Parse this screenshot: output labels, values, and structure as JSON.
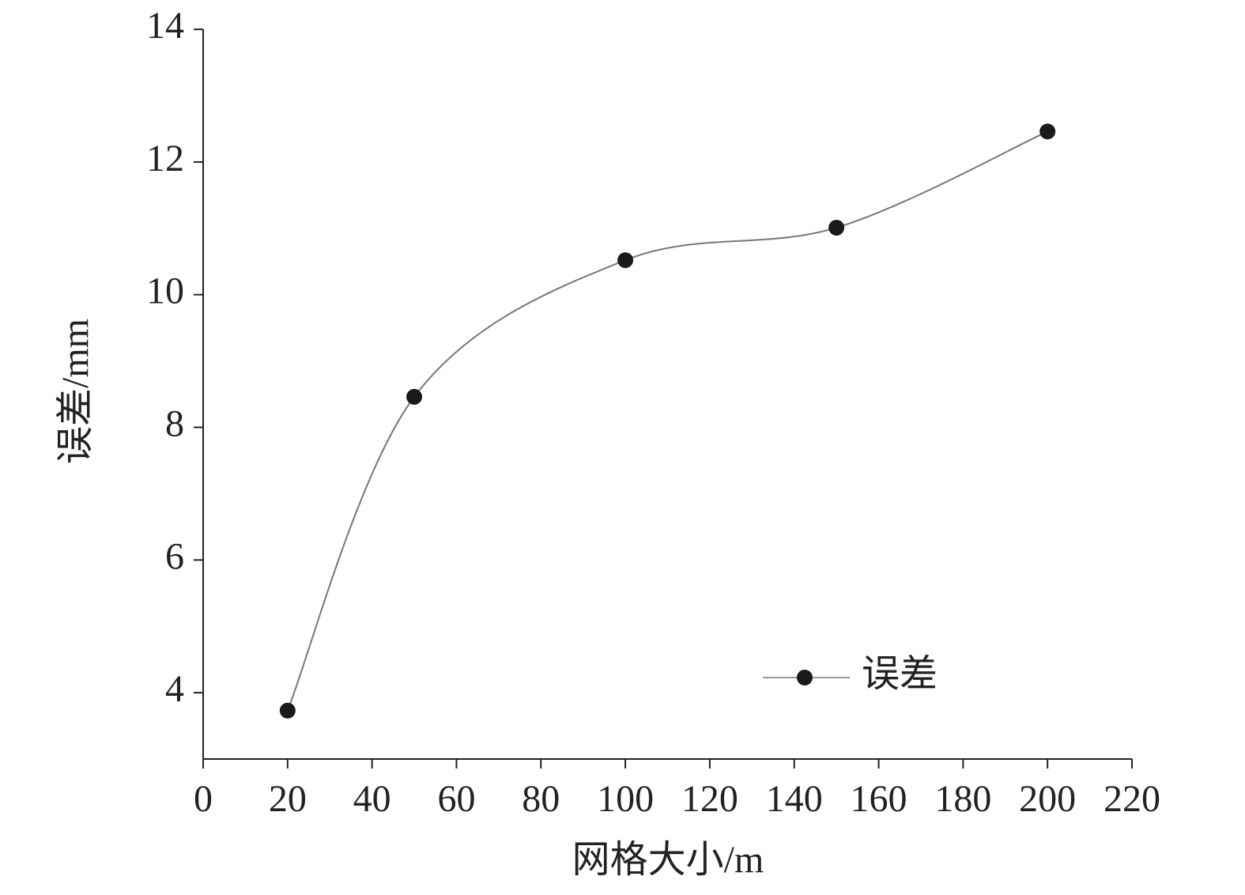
{
  "chart_data": {
    "type": "line",
    "x_label": "网格大小/m",
    "y_label": "误差/mm",
    "x": [
      20,
      50,
      100,
      150,
      200
    ],
    "series": [
      {
        "name": "误差",
        "color": "#1a1a1a",
        "values": [
          3.73,
          8.46,
          10.52,
          11.01,
          12.46
        ]
      }
    ],
    "xlim": [
      0,
      220
    ],
    "xticks": [
      0,
      20,
      40,
      60,
      80,
      100,
      120,
      140,
      160,
      180,
      200,
      220
    ],
    "ylim": [
      3,
      14
    ],
    "yticks": [
      4,
      6,
      8,
      10,
      12,
      14
    ],
    "grid": false,
    "legend": "lower-right",
    "smooth": true
  }
}
